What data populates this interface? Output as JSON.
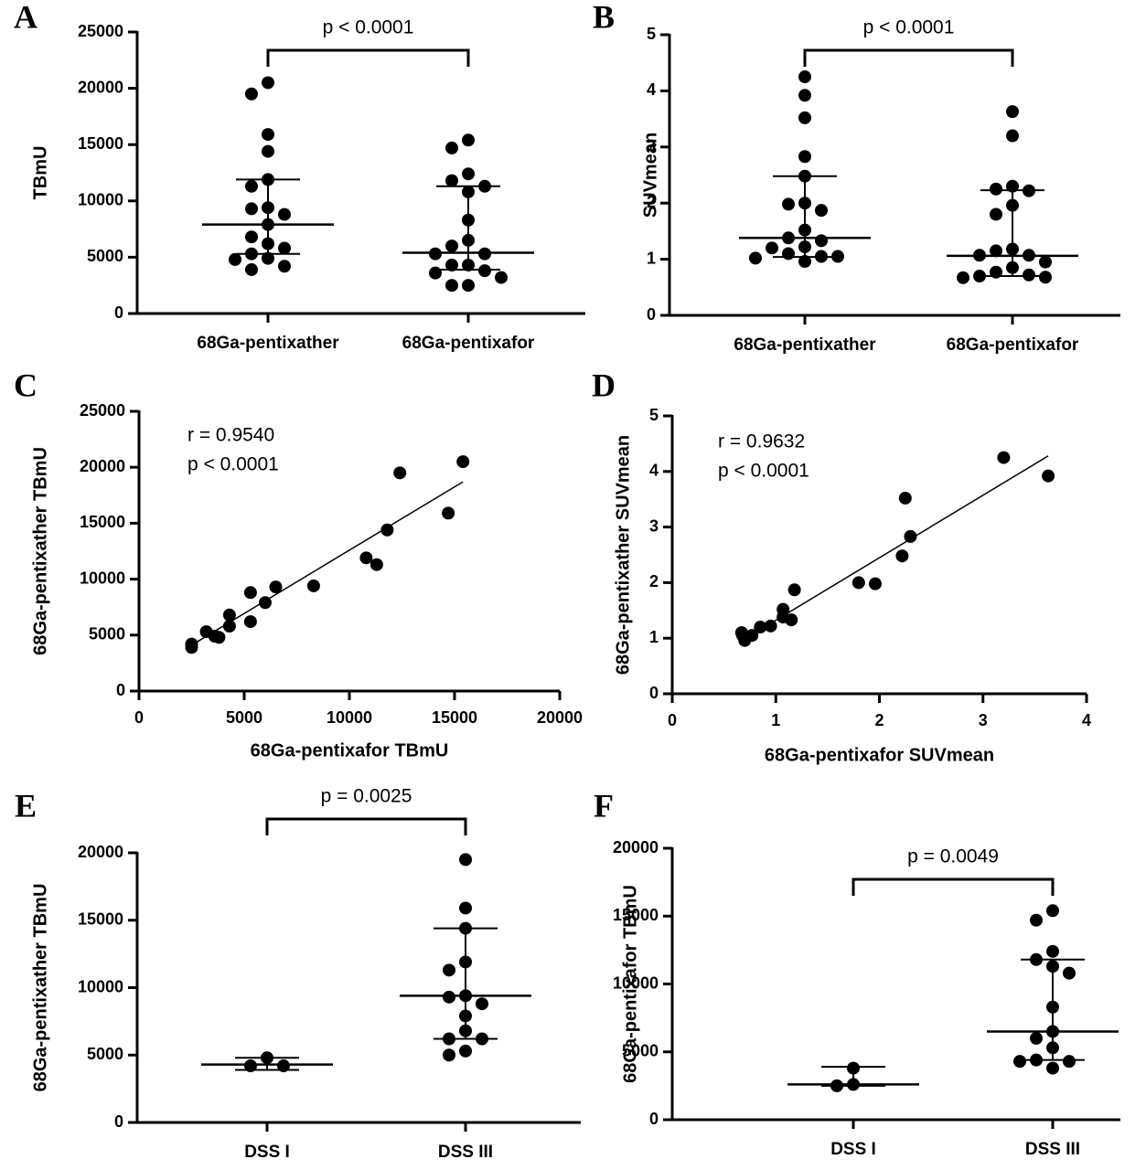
{
  "chart_data": [
    {
      "type": "strip",
      "label": "A",
      "ylabel": "TBmU",
      "categories": [
        "68Ga-pentixather",
        "68Ga-pentixafor"
      ],
      "values": [
        [
          20500,
          19500,
          15900,
          14400,
          11900,
          11300,
          9400,
          9300,
          8800,
          7900,
          6800,
          6200,
          5800,
          5300,
          4900,
          4800,
          4200,
          3900
        ],
        [
          15400,
          14700,
          12400,
          11800,
          11300,
          10800,
          8300,
          6500,
          6000,
          5300,
          5300,
          4300,
          4300,
          3800,
          3600,
          3200,
          2500,
          2500
        ]
      ],
      "median": [
        7900,
        5400
      ],
      "q1": [
        5300,
        3900
      ],
      "q3": [
        11900,
        11300
      ],
      "annotation": "p < 0.0001",
      "ylim": [
        0,
        25000
      ],
      "yticks": [
        0,
        5000,
        10000,
        15000,
        20000,
        25000
      ],
      "color": "#000000"
    },
    {
      "type": "strip",
      "label": "B",
      "ylabel": "SUVmean",
      "categories": [
        "68Ga-pentixather",
        "68Ga-pentixafor"
      ],
      "values": [
        [
          4.25,
          3.92,
          3.52,
          2.83,
          2.48,
          2.0,
          1.98,
          1.87,
          1.52,
          1.38,
          1.33,
          1.22,
          1.2,
          1.1,
          1.05,
          1.05,
          1.02,
          0.96
        ],
        [
          3.63,
          3.2,
          2.3,
          2.25,
          2.22,
          1.96,
          1.8,
          1.18,
          1.15,
          1.07,
          1.07,
          0.95,
          0.85,
          0.77,
          0.72,
          0.7,
          0.68,
          0.67
        ]
      ],
      "median": [
        1.38,
        1.06
      ],
      "q1": [
        1.04,
        0.7
      ],
      "q3": [
        2.48,
        2.23
      ],
      "annotation": "p < 0.0001",
      "ylim": [
        0,
        5
      ],
      "yticks": [
        0,
        1,
        2,
        3,
        4,
        5
      ],
      "color": "#000000"
    },
    {
      "type": "scatter",
      "label": "C",
      "xlabel": "68Ga-pentixafor TBmU",
      "ylabel": "68Ga-pentixather TBmU",
      "x": [
        15400,
        12400,
        14700,
        11800,
        10800,
        11300,
        8300,
        6500,
        5300,
        6000,
        4300,
        5300,
        4300,
        3200,
        3600,
        3800,
        2500,
        2500
      ],
      "y": [
        20500,
        19500,
        15900,
        14400,
        11900,
        11300,
        9400,
        9300,
        8800,
        7900,
        6800,
        6200,
        5800,
        5300,
        4900,
        4800,
        4200,
        3900
      ],
      "fit": {
        "x": [
          2500,
          15400
        ],
        "y": [
          4100,
          18700
        ]
      },
      "annotations": [
        "r = 0.9540",
        "p < 0.0001"
      ],
      "xlim": [
        0,
        20000
      ],
      "xticks": [
        0,
        5000,
        10000,
        15000,
        20000
      ],
      "ylim": [
        0,
        25000
      ],
      "yticks": [
        0,
        5000,
        10000,
        15000,
        20000,
        25000
      ],
      "color": "#000000"
    },
    {
      "type": "scatter",
      "label": "D",
      "xlabel": "68Ga-pentixafor SUVmean",
      "ylabel": "68Ga-pentixather SUVmean",
      "x": [
        3.2,
        3.63,
        2.25,
        2.3,
        2.22,
        1.8,
        1.96,
        1.18,
        1.07,
        1.07,
        1.15,
        0.95,
        0.85,
        0.77,
        0.67,
        0.68,
        0.72,
        0.7
      ],
      "y": [
        4.25,
        3.92,
        3.52,
        2.83,
        2.48,
        2.0,
        1.98,
        1.87,
        1.52,
        1.38,
        1.33,
        1.22,
        1.2,
        1.05,
        1.1,
        1.05,
        1.02,
        0.96
      ],
      "fit": {
        "x": [
          0.65,
          3.63
        ],
        "y": [
          0.93,
          4.28
        ]
      },
      "annotations": [
        "r = 0.9632",
        "p < 0.0001"
      ],
      "xlim": [
        0,
        4
      ],
      "xticks": [
        0,
        1,
        2,
        3,
        4
      ],
      "ylim": [
        0,
        5
      ],
      "yticks": [
        0,
        1,
        2,
        3,
        4,
        5
      ],
      "color": "#000000"
    },
    {
      "type": "strip",
      "label": "E",
      "ylabel": "68Ga-pentixather TBmU",
      "categories": [
        "DSS I",
        "DSS III"
      ],
      "values": [
        [
          4800,
          4200,
          4200
        ],
        [
          19500,
          15900,
          14400,
          11900,
          11300,
          9400,
          9300,
          8800,
          7900,
          6800,
          6200,
          6200,
          5300,
          5000
        ]
      ],
      "median": [
        4300,
        9400
      ],
      "q1": [
        3900,
        6200
      ],
      "q3": [
        4800,
        14400
      ],
      "annotation": "p = 0.0025",
      "ylim": [
        0,
        20000
      ],
      "yticks": [
        0,
        5000,
        10000,
        15000,
        20000
      ],
      "color": "#000000"
    },
    {
      "type": "strip",
      "label": "F",
      "ylabel": "68Ga-pentixafor TBmU",
      "categories": [
        "DSS I",
        "DSS III"
      ],
      "values": [
        [
          3800,
          2600,
          2500
        ],
        [
          15400,
          14700,
          12400,
          11800,
          11300,
          10800,
          8300,
          6500,
          6000,
          5300,
          4400,
          4300,
          4300,
          3800
        ]
      ],
      "median": [
        2600,
        6500
      ],
      "q1": [
        2500,
        4400
      ],
      "q3": [
        3900,
        11800
      ],
      "annotation": "p = 0.0049",
      "ylim": [
        0,
        20000
      ],
      "yticks": [
        0,
        5000,
        10000,
        15000,
        20000
      ],
      "color": "#000000"
    }
  ]
}
